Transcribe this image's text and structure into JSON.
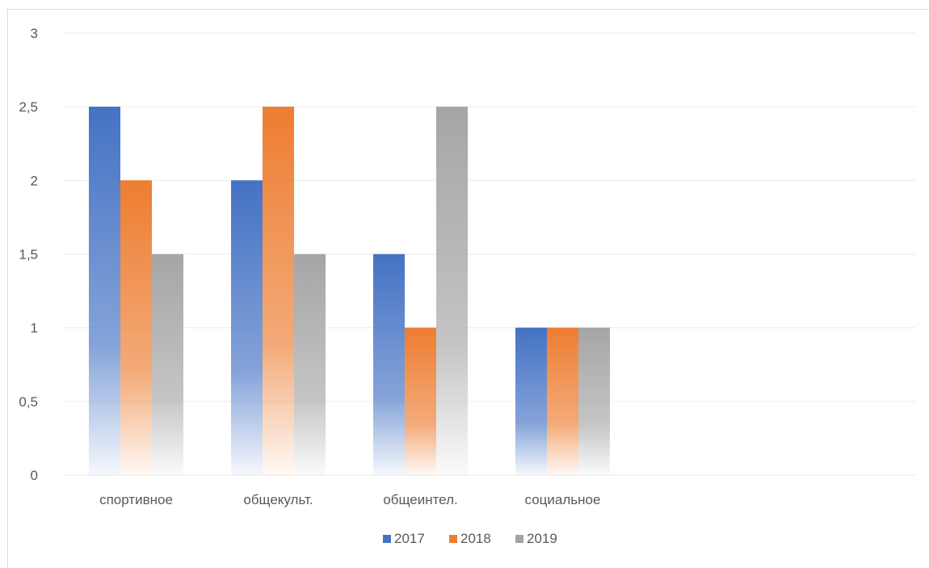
{
  "chart_data": {
    "type": "bar",
    "categories": [
      "спортивное",
      "общекульт.",
      "общеинтел.",
      "социальное"
    ],
    "series": [
      {
        "name": "2017",
        "values": [
          2.5,
          2,
          1.5,
          1
        ],
        "color": "#4472c4"
      },
      {
        "name": "2018",
        "values": [
          2,
          2.5,
          1,
          1
        ],
        "color": "#ed7d31"
      },
      {
        "name": "2019",
        "values": [
          1.5,
          1.5,
          2.5,
          1
        ],
        "color": "#a5a5a5"
      }
    ],
    "y_ticks": [
      "0",
      "0,5",
      "1",
      "1,5",
      "2",
      "2,5",
      "3"
    ],
    "ylim": [
      0,
      3
    ],
    "grid": true,
    "legend_position": "bottom",
    "title": "",
    "xlabel": "",
    "ylabel": ""
  }
}
